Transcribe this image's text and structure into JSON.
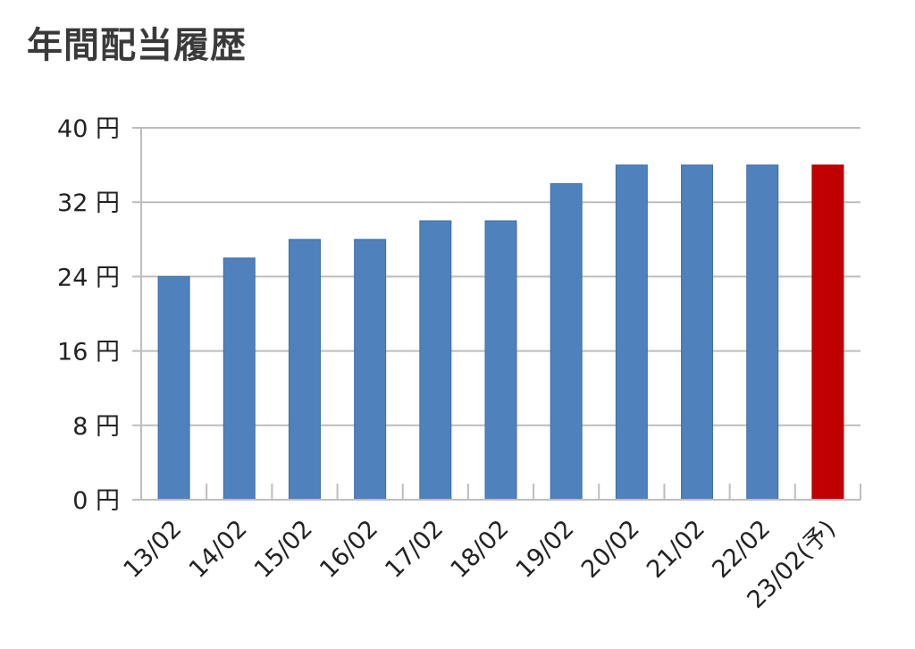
{
  "chart_data": {
    "type": "bar",
    "title": "年間配当履歴",
    "categories": [
      "13/02",
      "14/02",
      "15/02",
      "16/02",
      "17/02",
      "18/02",
      "19/02",
      "20/02",
      "21/02",
      "22/02",
      "23/02(予)"
    ],
    "values": [
      24,
      26,
      28,
      28,
      30,
      30,
      34,
      36,
      36,
      36,
      36
    ],
    "y_ticks": [
      "0 円",
      "8 円",
      "16 円",
      "24 円",
      "32 円",
      "40 円"
    ],
    "ylim": [
      0,
      40
    ],
    "grid": true,
    "legend": "none",
    "colors": {
      "actual": "#4f81bd",
      "forecast": "#c00000"
    },
    "highlight_index": 10
  }
}
